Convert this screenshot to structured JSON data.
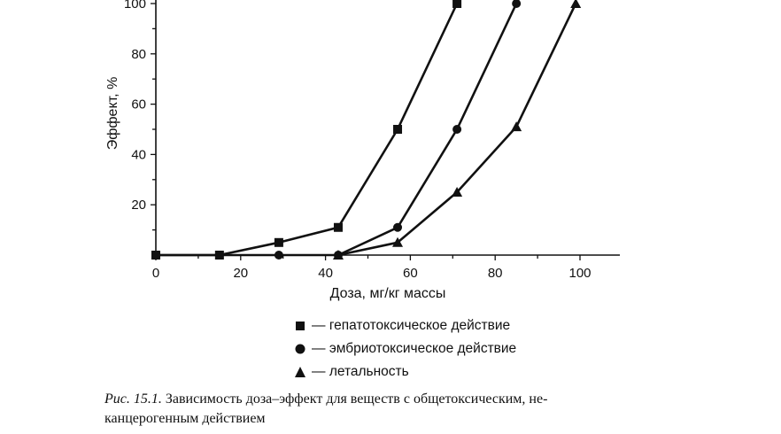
{
  "chart_data": {
    "type": "line",
    "xlabel": "Доза, мг/кг массы",
    "ylabel": "Эффект, %",
    "x_ticks": [
      0,
      20,
      40,
      60,
      80,
      100
    ],
    "y_ticks": [
      20,
      40,
      60,
      80,
      100
    ],
    "xlim": [
      0,
      110
    ],
    "ylim": [
      0,
      100
    ],
    "series": [
      {
        "name": "гепатотоксическое действие",
        "marker": "square",
        "x": [
          0,
          15,
          29,
          43,
          57,
          71
        ],
        "y": [
          0,
          0,
          5,
          11,
          50,
          100
        ]
      },
      {
        "name": "эмбриотоксическое действие",
        "marker": "circle",
        "x": [
          0,
          29,
          43,
          57,
          71,
          85
        ],
        "y": [
          0,
          0,
          0,
          11,
          50,
          100
        ]
      },
      {
        "name": "летальность",
        "marker": "triangle",
        "x": [
          43,
          57,
          71,
          85,
          99
        ],
        "y": [
          0,
          5,
          25,
          51,
          100
        ]
      }
    ],
    "legend_prefix": "—"
  },
  "caption": {
    "prefix": "Рис. 15.1.",
    "text": " Зависимость доза–эффект для веществ с общетоксическим, не-",
    "text2": "канцерогенным действием"
  }
}
